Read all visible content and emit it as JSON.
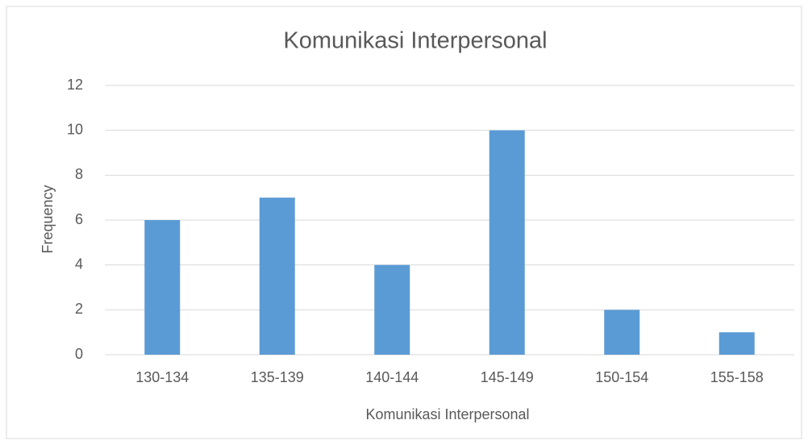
{
  "chart_data": {
    "type": "bar",
    "title": "Komunikasi Interpersonal",
    "x_label": "Komunikasi Interpersonal",
    "y_label": "Frequency",
    "categories": [
      "130-134",
      "135-139",
      "140-144",
      "145-149",
      "150-154",
      "155-158"
    ],
    "values": [
      6,
      7,
      4,
      10,
      2,
      1
    ],
    "color": "#5b9bd5",
    "ylim": [
      0,
      12
    ],
    "yticks": [
      0,
      2,
      4,
      6,
      8,
      10,
      12
    ],
    "grid": true
  }
}
